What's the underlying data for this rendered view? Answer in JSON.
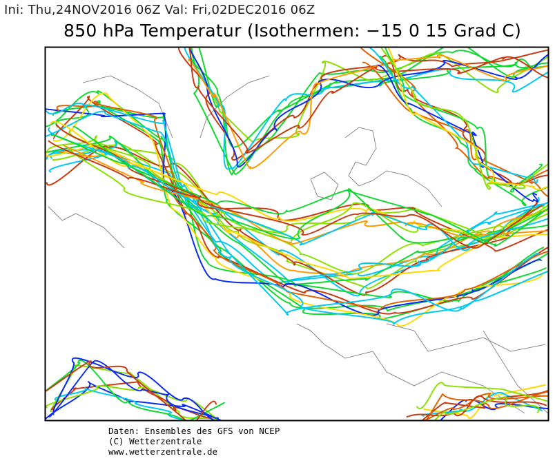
{
  "header": {
    "init_line": "Ini: Thu,24NOV2016 06Z Val: Fri,02DEC2016 06Z",
    "title": "850 hPa Temperatur (Isothermen: −15 0 15 Grad C)"
  },
  "map": {
    "description_type": "ensemble spaghetti plot, 850 hPa temperature isotherms",
    "isotherms_celsius": [
      -15,
      0,
      15
    ],
    "member_colors": [
      "#0a2cf0",
      "#00c8f0",
      "#10d830",
      "#8ce000",
      "#ffd800",
      "#ff9a00",
      "#e06000",
      "#c83a10"
    ],
    "coastline_color": "#8a8a8a",
    "frame_color": "#000000"
  },
  "footer": {
    "lines": [
      "Daten: Ensembles des GFS von NCEP",
      "(C) Wetterzentrale",
      "www.wetterzentrale.de"
    ]
  }
}
